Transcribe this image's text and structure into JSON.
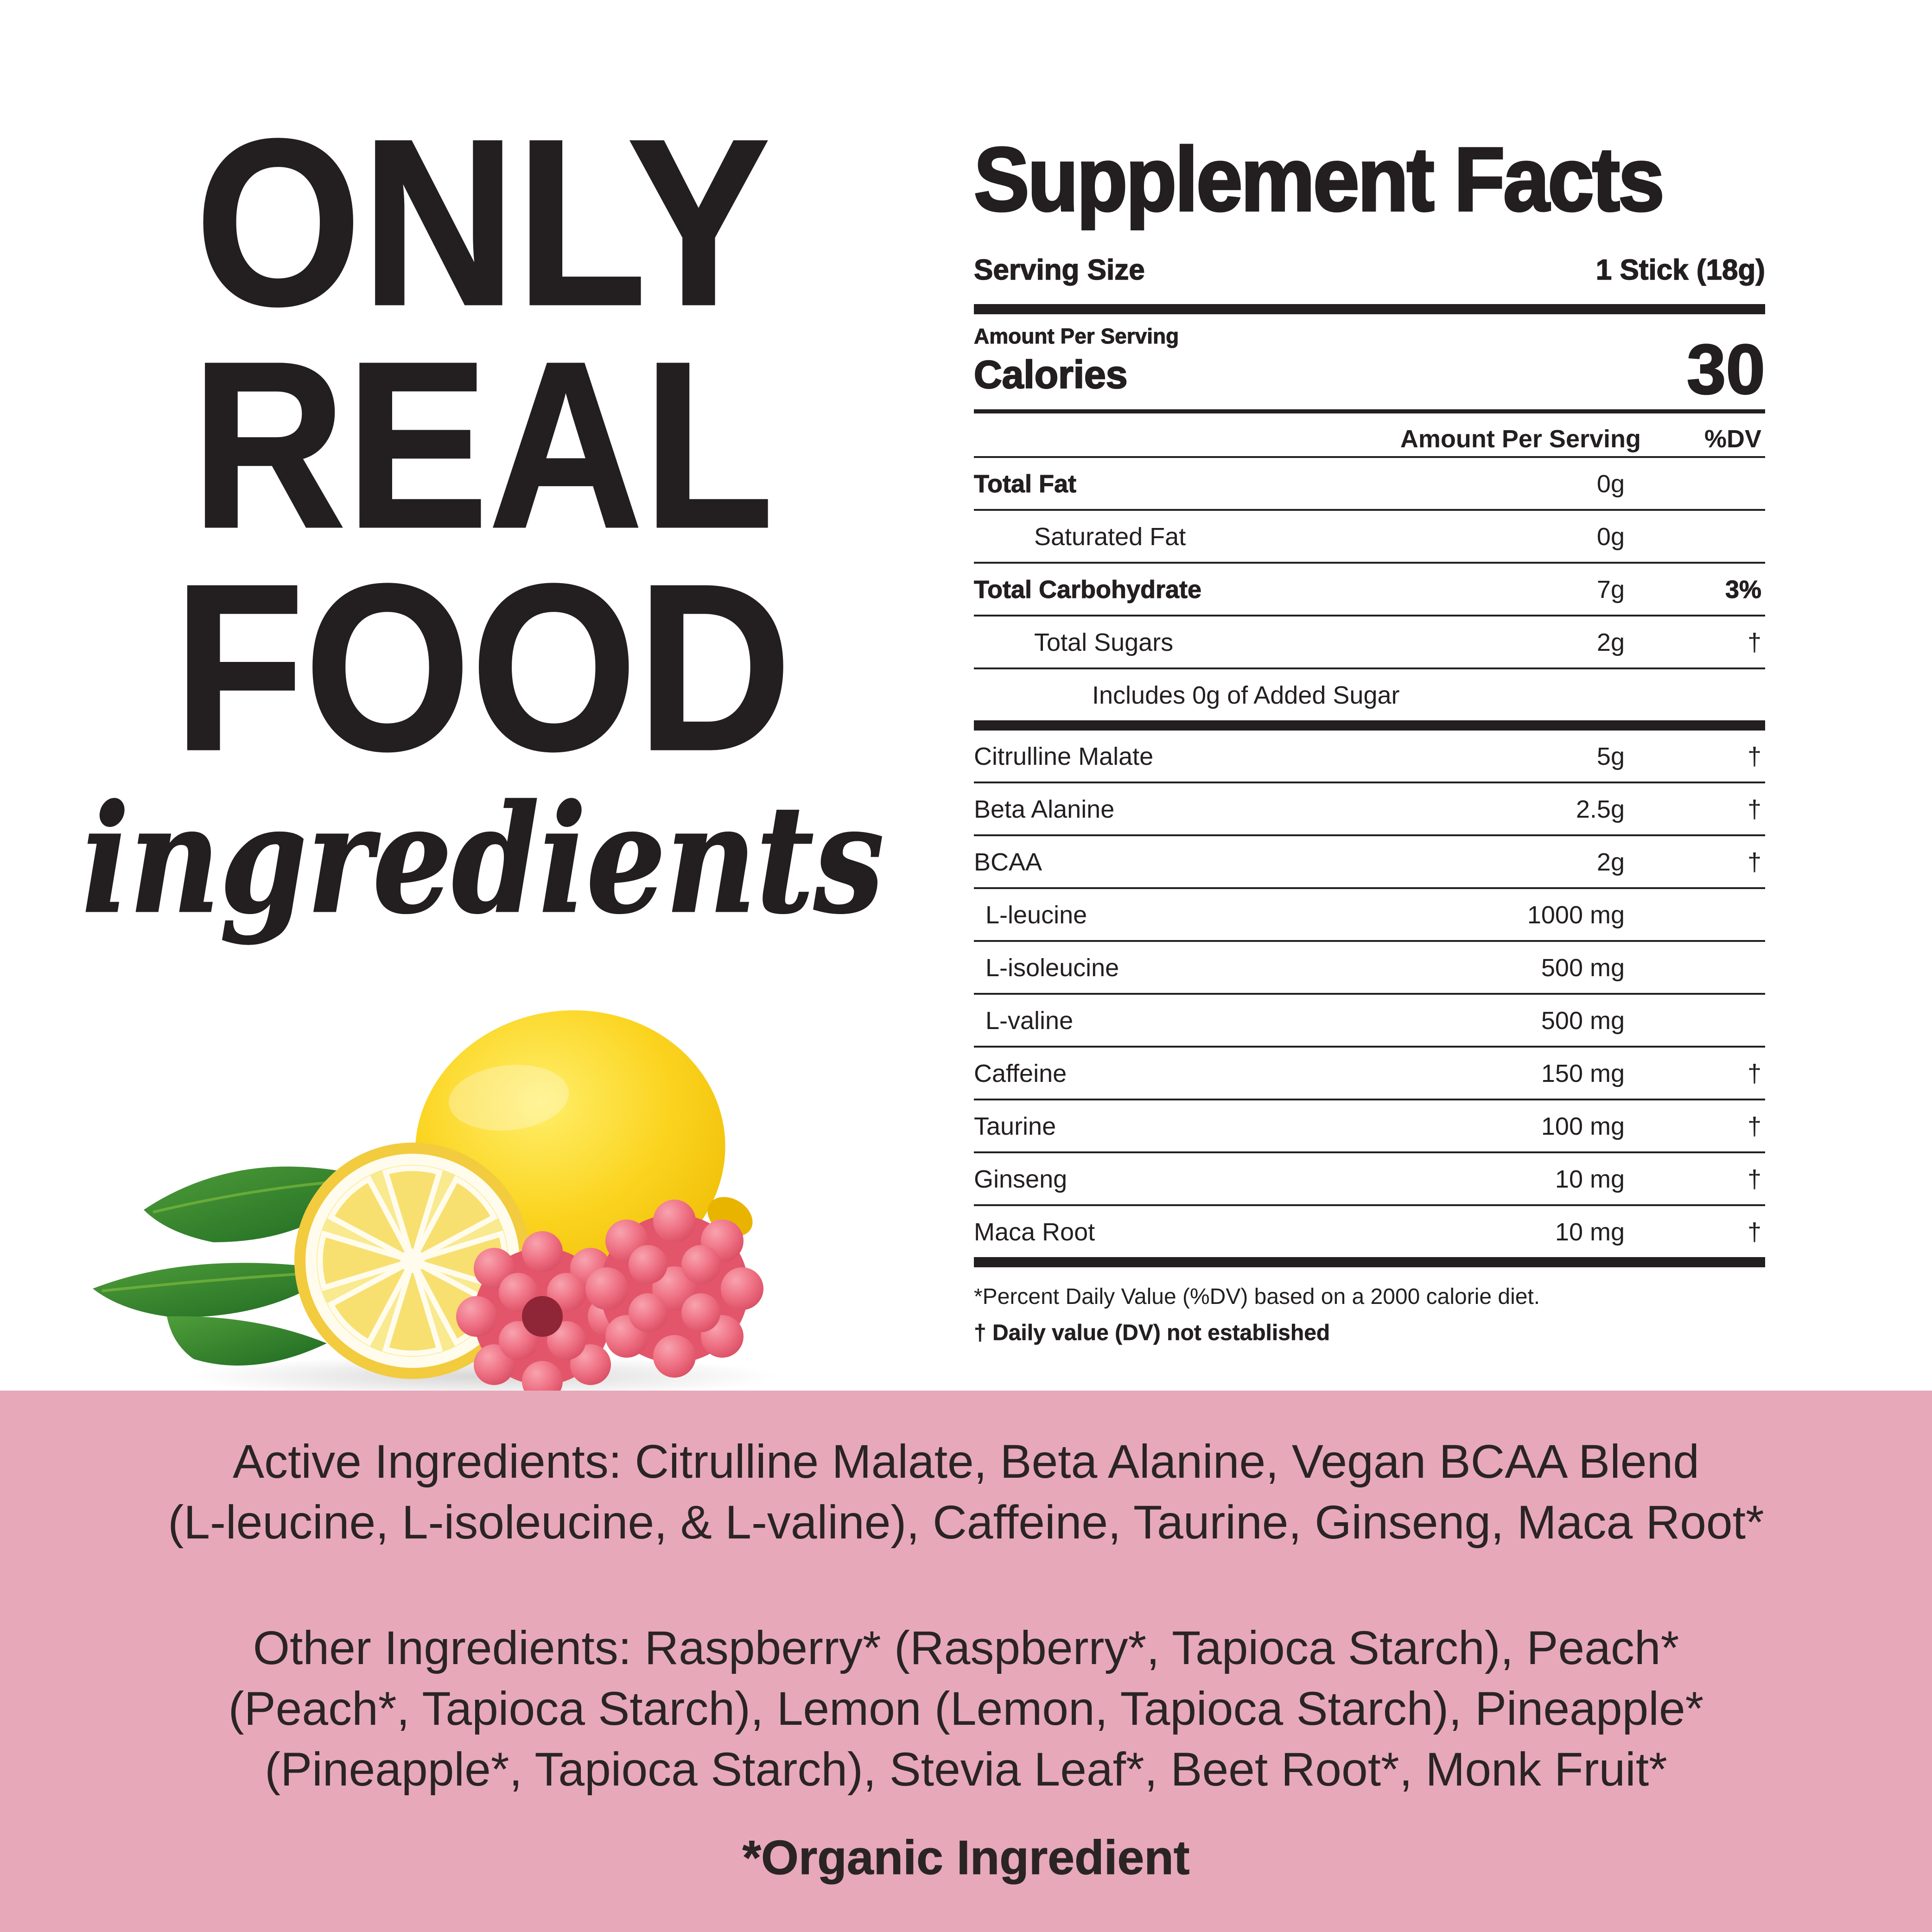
{
  "left_panel": {
    "headline_lines": [
      "ONLY",
      "REAL",
      "FOOD"
    ],
    "subheadline": "ingredients",
    "illustration": "lemon-lemon-slice-raspberries-leaves"
  },
  "supplement_facts": {
    "title": "Supplement Facts",
    "serving_size_label": "Serving Size",
    "serving_size_value": "1 Stick (18g)",
    "amount_per_serving_label": "Amount Per Serving",
    "calories_label": "Calories",
    "calories_value": "30",
    "header_amount": "Amount Per Serving",
    "header_dv": "%DV",
    "nutrient_rows": [
      {
        "name": "Total Fat",
        "amount": "0g",
        "dv": "",
        "bold": true,
        "indent": 0
      },
      {
        "name": "Saturated Fat",
        "amount": "0g",
        "dv": "",
        "bold": false,
        "indent": 1
      },
      {
        "name": "Total Carbohydrate",
        "amount": "7g",
        "dv": "3%",
        "bold": true,
        "indent": 0
      },
      {
        "name": "Total Sugars",
        "amount": "2g",
        "dv": "†",
        "bold": false,
        "indent": 1
      },
      {
        "name": "Includes 0g of Added Sugar",
        "amount": "",
        "dv": "",
        "bold": false,
        "indent": 2
      }
    ],
    "ingredient_rows": [
      {
        "name": "Citrulline Malate",
        "amount": "5g",
        "dv": "†",
        "bold": false,
        "indent": 0
      },
      {
        "name": "Beta Alanine",
        "amount": "2.5g",
        "dv": "†",
        "bold": false,
        "indent": 0
      },
      {
        "name": "BCAA",
        "amount": "2g",
        "dv": "†",
        "bold": false,
        "indent": 0
      },
      {
        "name": "L-leucine",
        "amount": "1000 mg",
        "dv": "",
        "bold": false,
        "indent": "s"
      },
      {
        "name": "L-isoleucine",
        "amount": "500 mg",
        "dv": "",
        "bold": false,
        "indent": "s"
      },
      {
        "name": "L-valine",
        "amount": "500 mg",
        "dv": "",
        "bold": false,
        "indent": "s"
      },
      {
        "name": "Caffeine",
        "amount": "150 mg",
        "dv": "†",
        "bold": false,
        "indent": 0
      },
      {
        "name": "Taurine",
        "amount": "100 mg",
        "dv": "†",
        "bold": false,
        "indent": 0
      },
      {
        "name": "Ginseng",
        "amount": "10 mg",
        "dv": "†",
        "bold": false,
        "indent": 0
      },
      {
        "name": "Maca Root",
        "amount": "10 mg",
        "dv": "†",
        "bold": false,
        "indent": 0
      }
    ],
    "footnote_percent": "*Percent Daily Value (%DV) based on a 2000 calorie diet.",
    "footnote_dagger": "† Daily value (DV) not established"
  },
  "ingredients_section": {
    "background_color": "#e7a8ba",
    "active_lines": [
      "Active Ingredients: Citrulline Malate, Beta Alanine, Vegan BCAA Blend",
      "(L-leucine, L-isoleucine, & L-valine), Caffeine, Taurine, Ginseng, Maca Root*"
    ],
    "other_lines": [
      "Other Ingredients: Raspberry* (Raspberry*, Tapioca Starch), Peach*",
      "(Peach*, Tapioca Starch), Lemon (Lemon, Tapioca Starch), Pineapple*",
      "(Pineapple*, Tapioca Starch), Stevia Leaf*, Beet Root*, Monk Fruit*"
    ],
    "organic_note": "*Organic Ingredient"
  },
  "colors": {
    "text_black": "#231f20",
    "accent_pink": "#e7a8ba",
    "lemon_yellow": "#fbd420",
    "leaf_green": "#3f8f2f",
    "raspberry_red": "#e2556a"
  }
}
